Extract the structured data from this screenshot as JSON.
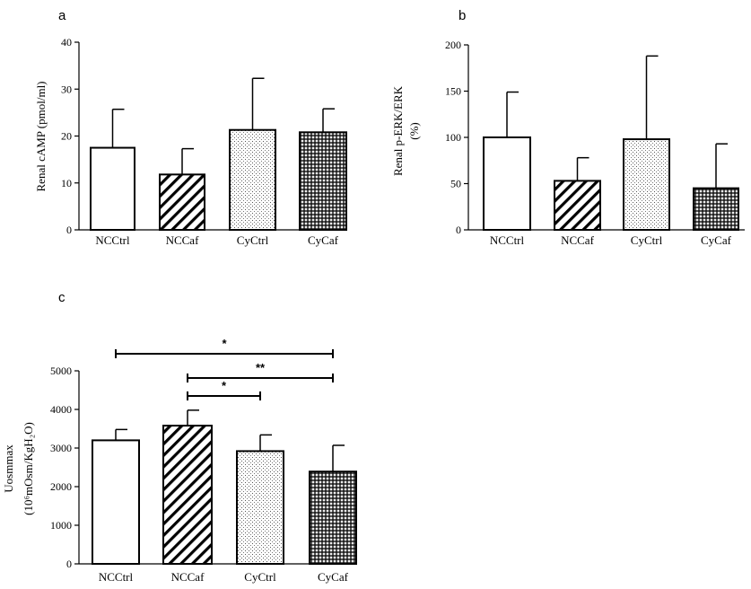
{
  "chart_data": [
    {
      "type": "bar",
      "panel": "a",
      "ylabel": "Renal cAMP (pmol/ml)",
      "categories": [
        "NCCtrl",
        "NCCaf",
        "CyCtrl",
        "CyCaf"
      ],
      "values": [
        17.5,
        11.8,
        21.3,
        20.8
      ],
      "errors": [
        8.2,
        5.5,
        11.0,
        5.0
      ],
      "patterns": [
        "open",
        "hatch",
        "dots",
        "grid"
      ],
      "ylim": [
        0,
        40
      ],
      "yticks": [
        0,
        10,
        20,
        30,
        40
      ]
    },
    {
      "type": "bar",
      "panel": "b",
      "ylabel": "Renal p-ERK/ERK",
      "ylabel_unit": "(%)",
      "categories": [
        "NCCtrl",
        "NCCaf",
        "CyCtrl",
        "CyCaf"
      ],
      "values": [
        100,
        53,
        98,
        45
      ],
      "errors": [
        49,
        25,
        90,
        48
      ],
      "patterns": [
        "open",
        "hatch",
        "dots",
        "grid"
      ],
      "ylim": [
        0,
        200
      ],
      "yticks": [
        0,
        50,
        100,
        150,
        200
      ]
    },
    {
      "type": "bar",
      "panel": "c",
      "ylabel": "Uosmmax",
      "ylabel_unit": "(10⁶mOsm/KgH₂O)",
      "categories": [
        "NCCtrl",
        "NCCaf",
        "CyCtrl",
        "CyCaf"
      ],
      "values": [
        3200,
        3580,
        2920,
        2390
      ],
      "errors": [
        280,
        400,
        420,
        680
      ],
      "patterns": [
        "open",
        "hatch",
        "dots",
        "grid"
      ],
      "ylim": [
        0,
        5000
      ],
      "yticks": [
        0,
        1000,
        2000,
        3000,
        4000,
        5000
      ],
      "significance": [
        {
          "from": 0,
          "to": 3,
          "label": "*"
        },
        {
          "from": 1,
          "to": 3,
          "label": "**"
        },
        {
          "from": 1,
          "to": 2,
          "label": "*"
        }
      ]
    }
  ]
}
